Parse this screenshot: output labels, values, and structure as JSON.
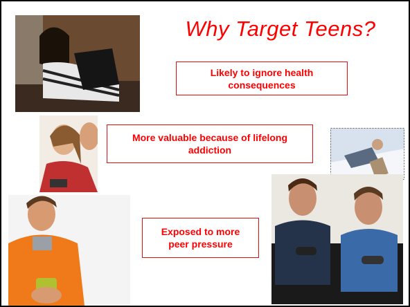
{
  "slide": {
    "title": "Why Target Teens?",
    "points": [
      "Likely to ignore health consequences",
      "More valuable because of lifelong addiction",
      "Exposed to more peer pressure"
    ]
  }
}
